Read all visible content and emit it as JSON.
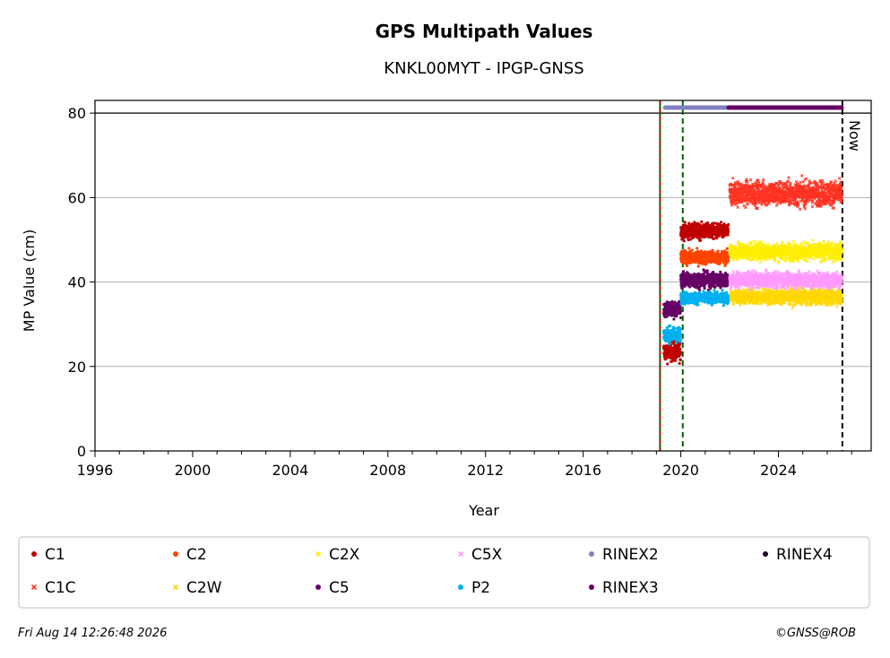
{
  "chart_data": {
    "type": "scatter",
    "title": "GPS Multipath Values",
    "subtitle": "KNKL00MYT - IPGP-GNSS",
    "xlabel": "Year",
    "ylabel": "MP Value (cm)",
    "xlim": [
      1996,
      2027.8
    ],
    "ylim": [
      0,
      83
    ],
    "xticks": [
      1996,
      2000,
      2004,
      2008,
      2012,
      2016,
      2020,
      2024
    ],
    "xtick_labels": [
      "1996",
      "2000",
      "2004",
      "2008",
      "2012",
      "2016",
      "2020",
      "2024"
    ],
    "yticks": [
      0,
      20,
      40,
      60,
      80
    ],
    "ytick_labels": [
      "0",
      "20",
      "40",
      "60",
      "80"
    ],
    "grid": "horizontal",
    "now_label": "Now",
    "now_x": 2026.62,
    "vertical_lines": [
      {
        "x": 2019.15,
        "style": "solid-red-green"
      },
      {
        "x": 2020.08,
        "style": "dashed-green"
      }
    ],
    "horizontal_line_y": 80,
    "legend_position": "below",
    "series": [
      {
        "name": "C1",
        "marker": "circle",
        "color": "#c00000",
        "segments": [
          {
            "x0": 2019.3,
            "x1": 2020.0,
            "y": 23.5,
            "spread": 2.0
          },
          {
            "x0": 2020.0,
            "x1": 2021.95,
            "y": 52.0,
            "spread": 1.6
          }
        ]
      },
      {
        "name": "C1C",
        "marker": "x",
        "color": "#ff3322",
        "segments": [
          {
            "x0": 2022.0,
            "x1": 2026.6,
            "y": 61.0,
            "spread": 2.6
          }
        ]
      },
      {
        "name": "C2",
        "marker": "circle",
        "color": "#ff4500",
        "segments": [
          {
            "x0": 2020.0,
            "x1": 2021.95,
            "y": 45.8,
            "spread": 1.4
          }
        ]
      },
      {
        "name": "C2W",
        "marker": "x",
        "color": "#ffd700",
        "segments": [
          {
            "x0": 2022.0,
            "x1": 2026.6,
            "y": 36.5,
            "spread": 1.6
          }
        ]
      },
      {
        "name": "C2X",
        "marker": "x",
        "color": "#ffee00",
        "segments": [
          {
            "x0": 2022.0,
            "x1": 2026.6,
            "y": 47.2,
            "spread": 1.8
          }
        ]
      },
      {
        "name": "C5",
        "marker": "circle",
        "color": "#660066",
        "segments": [
          {
            "x0": 2019.3,
            "x1": 2020.0,
            "y": 33.5,
            "spread": 1.6
          },
          {
            "x0": 2020.0,
            "x1": 2021.95,
            "y": 40.5,
            "spread": 1.6
          }
        ]
      },
      {
        "name": "C5X",
        "marker": "x",
        "color": "#ff99ff",
        "segments": [
          {
            "x0": 2022.0,
            "x1": 2026.6,
            "y": 40.5,
            "spread": 1.6
          }
        ]
      },
      {
        "name": "P2",
        "marker": "circle",
        "color": "#00b0f0",
        "segments": [
          {
            "x0": 2019.3,
            "x1": 2020.0,
            "y": 27.5,
            "spread": 1.6
          },
          {
            "x0": 2020.0,
            "x1": 2021.95,
            "y": 36.2,
            "spread": 1.2
          }
        ]
      },
      {
        "name": "RINEX2",
        "marker": "circle",
        "color": "#8080c0",
        "segments": [
          {
            "x0": 2019.35,
            "x1": 2021.95,
            "y": 81.3,
            "spread": 0
          }
        ]
      },
      {
        "name": "RINEX3",
        "marker": "circle",
        "color": "#660066",
        "segments": [
          {
            "x0": 2021.95,
            "x1": 2026.6,
            "y": 81.3,
            "spread": 0
          }
        ]
      },
      {
        "name": "RINEX4",
        "marker": "circle",
        "color": "#1a0020",
        "segments": []
      }
    ],
    "legend_order": [
      "C1",
      "C2",
      "C2X",
      "C5X",
      "RINEX2",
      "RINEX4",
      "C1C",
      "C2W",
      "C5",
      "P2",
      "RINEX3"
    ]
  },
  "footer": {
    "timestamp": "Fri Aug 14 12:26:48 2026",
    "copyright": "©GNSS@ROB"
  }
}
